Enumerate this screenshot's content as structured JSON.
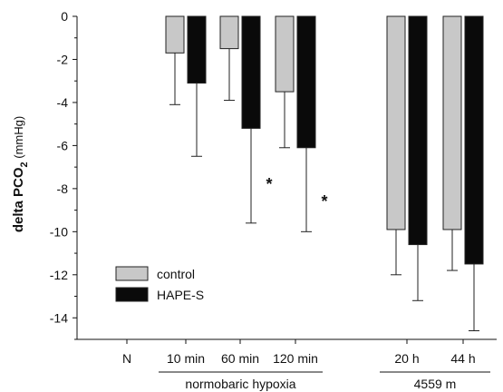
{
  "chart_data": {
    "type": "bar",
    "ylabel": {
      "main": "delta PCO",
      "sub": "2",
      "unit": " (mmHg)"
    },
    "ylim": [
      -15,
      0
    ],
    "yticks": [
      0,
      -2,
      -4,
      -6,
      -8,
      -10,
      -12,
      -14
    ],
    "categories": [
      "N",
      "10 min",
      "60 min",
      "120 min",
      "20 h",
      "44 h"
    ],
    "groups": [
      {
        "label": "normobaric hypoxia",
        "categories": [
          "10 min",
          "60 min",
          "120 min"
        ]
      },
      {
        "label": "4559 m",
        "categories": [
          "20 h",
          "44 h"
        ]
      }
    ],
    "series": [
      {
        "name": "control",
        "color": "#c8c8c8",
        "values": [
          null,
          -1.7,
          -1.5,
          -3.5,
          -9.9,
          -9.9
        ],
        "errors": [
          null,
          2.4,
          2.4,
          2.6,
          2.1,
          1.9
        ]
      },
      {
        "name": "HAPE-S",
        "color": "#0a0a0a",
        "values": [
          null,
          -3.1,
          -5.2,
          -6.1,
          -10.6,
          -11.5
        ],
        "errors": [
          null,
          3.4,
          4.4,
          3.9,
          2.6,
          3.1
        ]
      }
    ],
    "annotations": [
      {
        "text": "*",
        "category": "60 min",
        "y": -7.8
      },
      {
        "text": "*",
        "category": "120 min",
        "y": -8.6
      }
    ],
    "legend": {
      "position": "bottom-left"
    }
  }
}
